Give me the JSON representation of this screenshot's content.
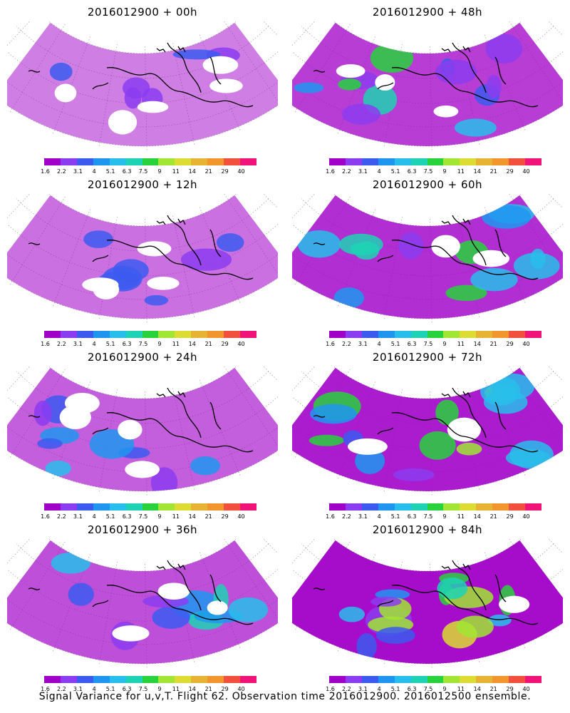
{
  "panels": [
    {
      "title": "2016012900 + 00h",
      "hour": 0
    },
    {
      "title": "2016012900 + 48h",
      "hour": 48
    },
    {
      "title": "2016012900 + 12h",
      "hour": 12
    },
    {
      "title": "2016012900 + 60h",
      "hour": 60
    },
    {
      "title": "2016012900 + 24h",
      "hour": 24
    },
    {
      "title": "2016012900 + 72h",
      "hour": 72
    },
    {
      "title": "2016012900 + 36h",
      "hour": 36
    },
    {
      "title": "2016012900 + 84h",
      "hour": 84
    }
  ],
  "colorbar": {
    "labels": [
      "1.6",
      "2.2",
      "3.1",
      "4",
      "5.1",
      "6.3",
      "7.5",
      "9",
      "11",
      "14",
      "21",
      "29",
      "40"
    ],
    "colors": [
      "#a000c8",
      "#8c3cf0",
      "#3c5af0",
      "#1e96f0",
      "#28beeb",
      "#1ed2b4",
      "#28d23c",
      "#a0e632",
      "#dcdc32",
      "#e6b432",
      "#f0962d",
      "#f0503c",
      "#f0147a"
    ]
  },
  "footer": "Signal Variance for u,v,T. Flight 62. Observation time 2016012900. 2016012500 ensemble."
}
